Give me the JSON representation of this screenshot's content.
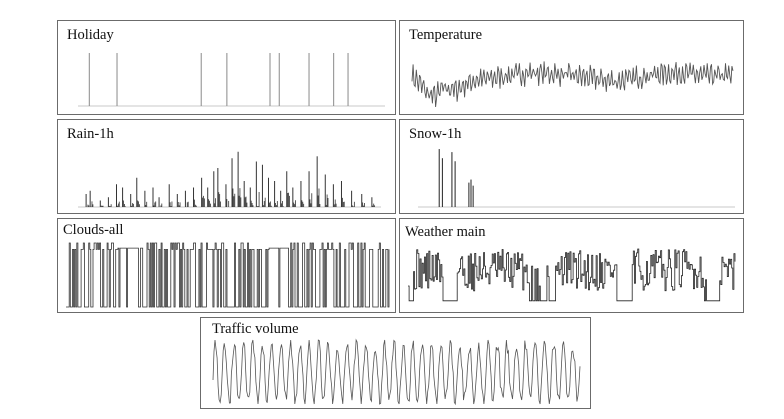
{
  "chart_data": [
    {
      "id": "holiday",
      "type": "line",
      "title": "Holiday",
      "style": "spikes",
      "n": 300,
      "ylim": [
        0,
        1
      ],
      "events": [
        11,
        38,
        120,
        145,
        187,
        196,
        225,
        249,
        263
      ],
      "event_values": [
        1,
        1,
        1,
        1,
        1,
        1,
        1,
        1,
        1
      ],
      "colors": {
        "line": "#8a8a8a",
        "baseline": "#c8c8c8"
      }
    },
    {
      "id": "temperature",
      "type": "line",
      "title": "Temperature",
      "style": "wave",
      "n": 300,
      "ylim": [
        0,
        1
      ],
      "seed": 7,
      "envelope": [
        [
          0,
          0.55
        ],
        [
          8,
          0.4
        ],
        [
          14,
          0.25
        ],
        [
          22,
          0.2
        ],
        [
          30,
          0.35
        ],
        [
          40,
          0.3
        ],
        [
          55,
          0.45
        ],
        [
          70,
          0.5
        ],
        [
          90,
          0.55
        ],
        [
          110,
          0.6
        ],
        [
          130,
          0.58
        ],
        [
          150,
          0.55
        ],
        [
          170,
          0.5
        ],
        [
          190,
          0.45
        ],
        [
          210,
          0.52
        ],
        [
          230,
          0.58
        ],
        [
          250,
          0.6
        ],
        [
          270,
          0.55
        ],
        [
          299,
          0.55
        ]
      ],
      "amplitude": 0.22,
      "colors": {
        "line": "#555555"
      }
    },
    {
      "id": "rain",
      "type": "line",
      "title": "Rain-1h",
      "style": "spikes",
      "n": 300,
      "ylim": [
        0,
        1
      ],
      "seed": 11,
      "events": [
        8,
        12,
        22,
        30,
        38,
        44,
        52,
        58,
        66,
        74,
        80,
        90,
        98,
        106,
        114,
        122,
        128,
        134,
        138,
        146,
        152,
        158,
        164,
        170,
        176,
        182,
        188,
        194,
        200,
        206,
        212,
        220,
        228,
        236,
        244,
        252,
        260,
        270,
        280,
        290
      ],
      "event_values": [
        0.2,
        0.25,
        0.1,
        0.15,
        0.35,
        0.3,
        0.2,
        0.45,
        0.25,
        0.3,
        0.15,
        0.35,
        0.2,
        0.25,
        0.3,
        0.45,
        0.3,
        0.55,
        0.6,
        0.35,
        0.75,
        0.85,
        0.4,
        0.3,
        0.7,
        0.65,
        0.45,
        0.4,
        0.25,
        0.55,
        0.3,
        0.4,
        0.55,
        0.78,
        0.5,
        0.35,
        0.4,
        0.25,
        0.2,
        0.15
      ],
      "colors": {
        "line": "#333333",
        "baseline": "#c8c8c8"
      }
    },
    {
      "id": "snow",
      "type": "line",
      "title": "Snow-1h",
      "style": "spikes",
      "n": 300,
      "ylim": [
        0,
        1
      ],
      "events": [
        20,
        23,
        32,
        35,
        48,
        50,
        52
      ],
      "event_values": [
        0.95,
        0.8,
        0.9,
        0.75,
        0.4,
        0.45,
        0.35
      ],
      "colors": {
        "line": "#222222",
        "baseline": "#c8c8c8"
      }
    },
    {
      "id": "clouds",
      "type": "line",
      "title": "Clouds-all",
      "style": "square",
      "n": 300,
      "ylim": [
        0,
        1
      ],
      "seed": 23,
      "gaps": [
        [
          48,
          70
        ],
        [
          188,
          205
        ]
      ],
      "colors": {
        "line": "#333333"
      }
    },
    {
      "id": "weather",
      "type": "line",
      "title": "Weather main",
      "style": "square-burst",
      "n": 300,
      "ylim": [
        0,
        1
      ],
      "seed": 31,
      "dense": [
        [
          5,
          30
        ],
        [
          45,
          110
        ],
        [
          135,
          190
        ],
        [
          205,
          270
        ],
        [
          285,
          299
        ]
      ],
      "colors": {
        "line": "#222222"
      }
    },
    {
      "id": "traffic",
      "type": "line",
      "title": "Traffic volume",
      "style": "periodic",
      "n": 360,
      "ylim": [
        0,
        1
      ],
      "seed": 5,
      "period": 9.2,
      "colors": {
        "line": "#555555"
      }
    }
  ]
}
